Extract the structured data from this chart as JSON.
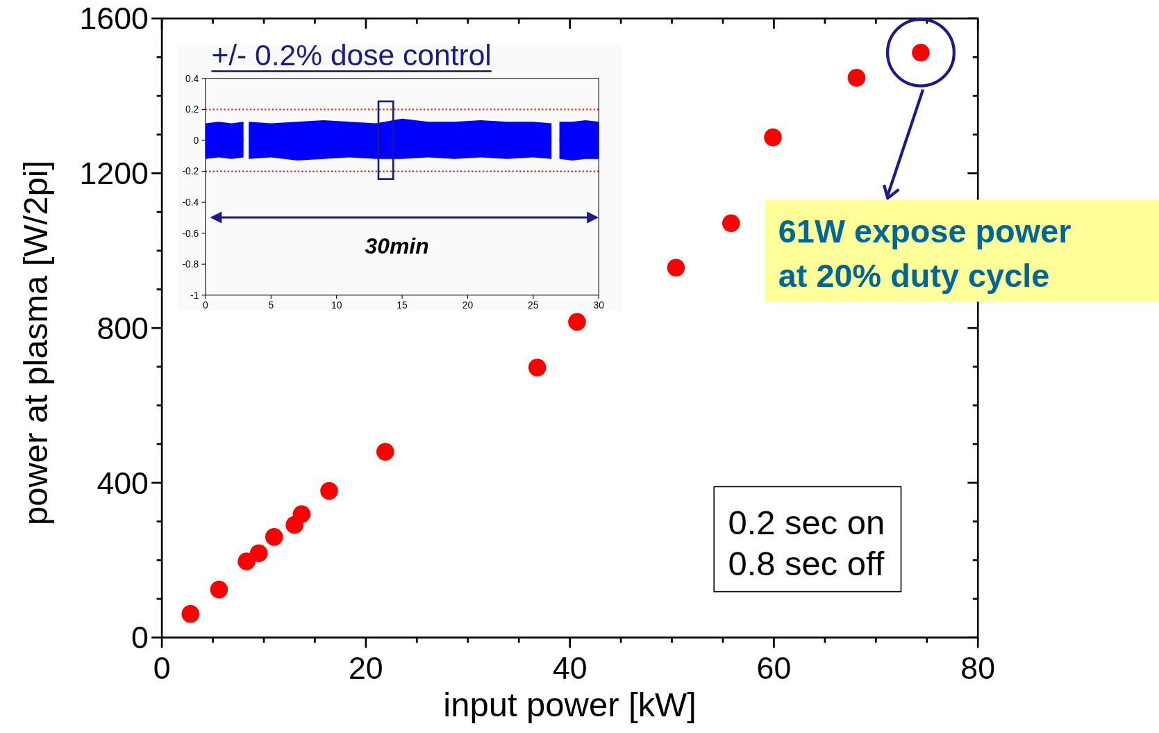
{
  "chart_data": [
    {
      "type": "scatter",
      "xlabel": "input power [kW]",
      "ylabel": "power at plasma [W/2pi]",
      "color": "#ff0000",
      "marker": "circle",
      "x": [
        2.8,
        5.6,
        8.3,
        9.5,
        11.0,
        13.0,
        13.7,
        16.4,
        21.9,
        36.8,
        40.7,
        50.4,
        55.8,
        59.9,
        68.1,
        74.4
      ],
      "values": [
        61,
        124,
        197,
        218,
        260,
        291,
        319,
        379,
        480,
        698,
        816,
        956,
        1071,
        1293,
        1447,
        1512
      ],
      "xlim": [
        0,
        80
      ],
      "ylim": [
        0,
        1600
      ],
      "xticks": [
        0,
        {
          "value": 5,
          "label": null
        },
        {
          "value": 10,
          "label": null
        },
        {
          "value": 15,
          "label": null
        },
        20,
        {
          "value": 25,
          "label": null
        },
        {
          "value": 30,
          "label": null
        },
        {
          "value": 35,
          "label": null
        },
        40,
        {
          "value": 45,
          "label": null
        },
        {
          "value": 50,
          "label": null
        },
        {
          "value": 55,
          "label": null
        },
        60,
        {
          "value": 65,
          "label": null
        },
        {
          "value": 70,
          "label": null
        },
        {
          "value": 75,
          "label": null
        },
        80
      ],
      "yticks": [
        0,
        {
          "value": 100,
          "label": null
        },
        {
          "value": 200,
          "label": null
        },
        {
          "value": 300,
          "label": null
        },
        400,
        {
          "value": 500,
          "label": null
        },
        {
          "value": 600,
          "label": null
        },
        {
          "value": 700,
          "label": null
        },
        800,
        {
          "value": 900,
          "label": null
        },
        {
          "value": 1000,
          "label": null
        },
        {
          "value": 1100,
          "label": null
        },
        1200,
        {
          "value": 1300,
          "label": null
        },
        {
          "value": 1400,
          "label": null
        },
        {
          "value": 1500,
          "label": null
        },
        1600
      ],
      "annotations": [
        "61W expose power\nat 20% duty cycle",
        "0.2 sec on\n0.8 sec off"
      ]
    },
    {
      "type": "line",
      "title": "+/- 0.2% dose control",
      "x": [
        0,
        1,
        2,
        2.9,
        3.1,
        3.3,
        5,
        7,
        9,
        11,
        13,
        15,
        17,
        19,
        21,
        23,
        25,
        26.4,
        26.7,
        27,
        28,
        29,
        30
      ],
      "series": [
        {
          "color": "#0000ff",
          "values": [
            0,
            0,
            0,
            0,
            null,
            0,
            0,
            0,
            0,
            0,
            0,
            0,
            0,
            0,
            0,
            0,
            0,
            0,
            null,
            0,
            0,
            0,
            0
          ],
          "lower": [
            -0.12,
            -0.11,
            -0.12,
            -0.11,
            null,
            -0.12,
            -0.11,
            -0.13,
            -0.12,
            -0.11,
            -0.12,
            -0.12,
            -0.11,
            -0.12,
            -0.11,
            -0.12,
            -0.11,
            -0.12,
            null,
            -0.12,
            -0.13,
            -0.12,
            -0.12
          ],
          "upper": [
            0.11,
            0.12,
            0.11,
            0.12,
            null,
            0.12,
            0.11,
            0.12,
            0.13,
            0.12,
            0.11,
            0.14,
            0.12,
            0.12,
            0.13,
            0.12,
            0.12,
            0.11,
            null,
            0.12,
            0.12,
            0.13,
            0.12
          ]
        }
      ],
      "xlim": [
        0,
        30
      ],
      "ylim": [
        -1,
        0.4
      ],
      "xticks": [
        0,
        5,
        10,
        15,
        20,
        25,
        30
      ],
      "yticks": [
        -1,
        -0.8,
        -0.6,
        -0.4,
        -0.2,
        0,
        0.2,
        0.4
      ],
      "ref_lines": [
        {
          "axis": "y",
          "value": 0.2,
          "color": "#ff0000",
          "line_style": "dotted"
        },
        {
          "axis": "y",
          "value": -0.2,
          "color": "#ff0000",
          "line_style": "dotted"
        }
      ],
      "annotations": [
        "30min"
      ]
    }
  ]
}
